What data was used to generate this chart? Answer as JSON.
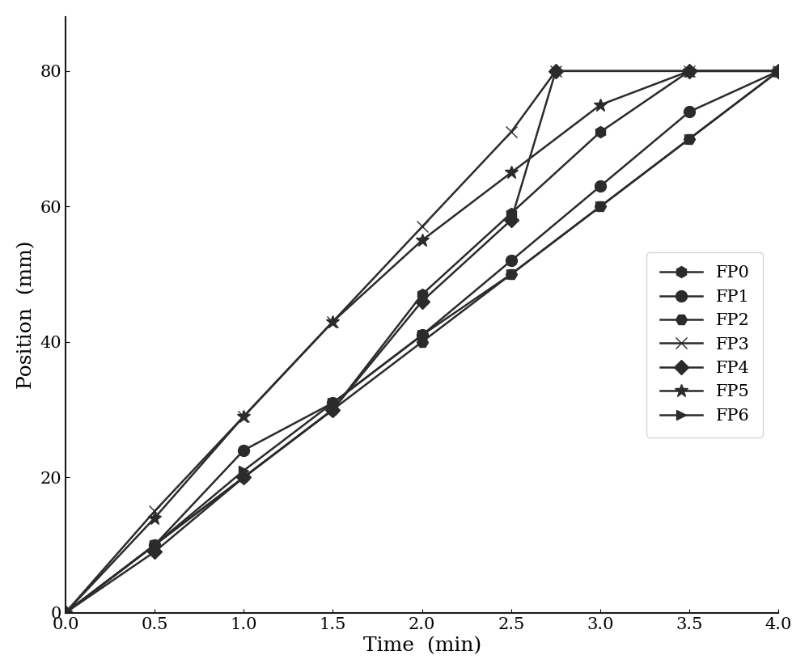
{
  "xlabel": "Time  (min)",
  "ylabel": "Position  (mm)",
  "xlim": [
    0,
    4
  ],
  "ylim": [
    0,
    88
  ],
  "xticks": [
    0,
    0.5,
    1.0,
    1.5,
    2.0,
    2.5,
    3.0,
    3.5,
    4.0
  ],
  "yticks": [
    0,
    20,
    40,
    60,
    80
  ],
  "series": [
    {
      "label": "FP0",
      "x": [
        0,
        0.5,
        1.0,
        1.5,
        2.0,
        2.5,
        3.0,
        3.5,
        4.0
      ],
      "y": [
        0,
        10,
        20,
        30,
        47,
        59,
        71,
        80,
        80
      ],
      "marker": "h",
      "markersize": 10,
      "color": "#2b2b2b",
      "linewidth": 1.8
    },
    {
      "label": "FP1",
      "x": [
        0,
        0.5,
        1.0,
        1.5,
        2.0,
        2.5,
        3.0,
        3.5,
        4.0
      ],
      "y": [
        0,
        10,
        24,
        31,
        41,
        52,
        63,
        74,
        80
      ],
      "marker": "o",
      "markersize": 10,
      "color": "#2b2b2b",
      "linewidth": 1.8
    },
    {
      "label": "FP2",
      "x": [
        0,
        0.5,
        1.0,
        1.5,
        2.0,
        2.5,
        3.0,
        3.5,
        4.0
      ],
      "y": [
        0,
        10,
        20,
        30,
        40,
        50,
        60,
        70,
        80
      ],
      "marker": "H",
      "markersize": 10,
      "color": "#2b2b2b",
      "linewidth": 1.8
    },
    {
      "label": "FP3",
      "x": [
        0,
        0.5,
        1.0,
        1.5,
        2.0,
        2.5,
        2.75,
        3.5,
        4.0
      ],
      "y": [
        0,
        15,
        29,
        43,
        57,
        71,
        80,
        80,
        80
      ],
      "marker": "x",
      "markersize": 10,
      "color": "#2b2b2b",
      "linewidth": 1.8
    },
    {
      "label": "FP4",
      "x": [
        0,
        0.5,
        1.0,
        1.5,
        2.0,
        2.5,
        2.75,
        3.5,
        4.0
      ],
      "y": [
        0,
        9,
        20,
        30,
        46,
        58,
        80,
        80,
        80
      ],
      "marker": "D",
      "markersize": 9,
      "color": "#2b2b2b",
      "linewidth": 1.8
    },
    {
      "label": "FP5",
      "x": [
        0,
        0.5,
        1.0,
        1.5,
        2.0,
        2.5,
        3.0,
        3.5,
        4.0
      ],
      "y": [
        0,
        14,
        29,
        43,
        55,
        65,
        75,
        80,
        80
      ],
      "marker": "*",
      "markersize": 12,
      "color": "#2b2b2b",
      "linewidth": 1.8
    },
    {
      "label": "FP6",
      "x": [
        0,
        0.5,
        1.0,
        1.5,
        2.0,
        2.5,
        3.0,
        3.5,
        4.0
      ],
      "y": [
        0,
        10,
        21,
        31,
        41,
        50,
        60,
        70,
        80
      ],
      "marker": ">",
      "markersize": 9,
      "color": "#2b2b2b",
      "linewidth": 1.8
    }
  ],
  "legend_fontsize": 15,
  "axis_label_fontsize": 18,
  "tick_fontsize": 15,
  "background_color": "#ffffff"
}
